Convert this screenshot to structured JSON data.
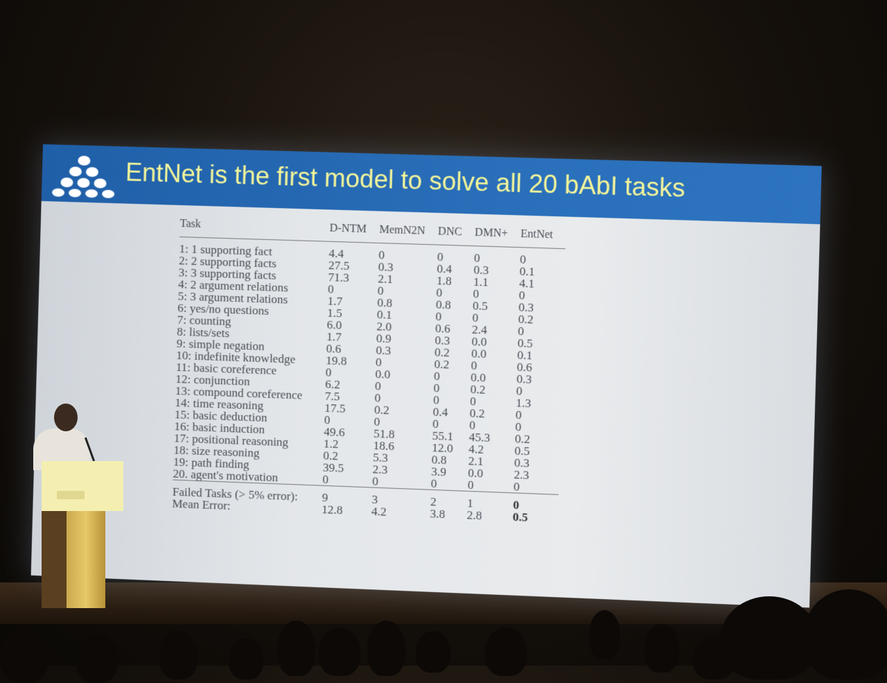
{
  "slide": {
    "title": "EntNet is the first model to solve all 20 bAbI tasks",
    "colors": {
      "header": "#2a6fba",
      "title": "#f3f59a",
      "background": "#e4e7ea"
    },
    "logo": "triangle-of-dots-logo"
  },
  "table": {
    "columns": [
      "Task",
      "D-NTM",
      "MemN2N",
      "DNC",
      "DMN+",
      "EntNet"
    ],
    "rows": [
      {
        "task": "1: 1 supporting fact",
        "values": [
          "4.4",
          "0",
          "0",
          "0",
          "0"
        ]
      },
      {
        "task": "2: 2 supporting facts",
        "values": [
          "27.5",
          "0.3",
          "0.4",
          "0.3",
          "0.1"
        ]
      },
      {
        "task": "3: 3 supporting facts",
        "values": [
          "71.3",
          "2.1",
          "1.8",
          "1.1",
          "4.1"
        ]
      },
      {
        "task": "4: 2 argument relations",
        "values": [
          "0",
          "0",
          "0",
          "0",
          "0"
        ]
      },
      {
        "task": "5: 3 argument relations",
        "values": [
          "1.7",
          "0.8",
          "0.8",
          "0.5",
          "0.3"
        ]
      },
      {
        "task": "6: yes/no questions",
        "values": [
          "1.5",
          "0.1",
          "0",
          "0",
          "0.2"
        ]
      },
      {
        "task": "7: counting",
        "values": [
          "6.0",
          "2.0",
          "0.6",
          "2.4",
          "0"
        ]
      },
      {
        "task": "8: lists/sets",
        "values": [
          "1.7",
          "0.9",
          "0.3",
          "0.0",
          "0.5"
        ]
      },
      {
        "task": "9: simple negation",
        "values": [
          "0.6",
          "0.3",
          "0.2",
          "0.0",
          "0.1"
        ]
      },
      {
        "task": "10: indefinite knowledge",
        "values": [
          "19.8",
          "0",
          "0.2",
          "0",
          "0.6"
        ]
      },
      {
        "task": "11: basic coreference",
        "values": [
          "0",
          "0.0",
          "0",
          "0.0",
          "0.3"
        ]
      },
      {
        "task": "12: conjunction",
        "values": [
          "6.2",
          "0",
          "0",
          "0.2",
          "0"
        ]
      },
      {
        "task": "13: compound coreference",
        "values": [
          "7.5",
          "0",
          "0",
          "0",
          "1.3"
        ]
      },
      {
        "task": "14: time reasoning",
        "values": [
          "17.5",
          "0.2",
          "0.4",
          "0.2",
          "0"
        ]
      },
      {
        "task": "15: basic deduction",
        "values": [
          "0",
          "0",
          "0",
          "0",
          "0"
        ]
      },
      {
        "task": "16: basic induction",
        "values": [
          "49.6",
          "51.8",
          "55.1",
          "45.3",
          "0.2"
        ]
      },
      {
        "task": "17: positional reasoning",
        "values": [
          "1.2",
          "18.6",
          "12.0",
          "4.2",
          "0.5"
        ]
      },
      {
        "task": "18: size reasoning",
        "values": [
          "0.2",
          "5.3",
          "0.8",
          "2.1",
          "0.3"
        ]
      },
      {
        "task": "19: path finding",
        "values": [
          "39.5",
          "2.3",
          "3.9",
          "0.0",
          "2.3"
        ]
      },
      {
        "task": "20. agent's motivation",
        "values": [
          "0",
          "0",
          "0",
          "0",
          "0"
        ]
      }
    ],
    "summary": [
      {
        "task": "Failed Tasks (> 5% error):",
        "values": [
          "9",
          "3",
          "2",
          "1",
          "0"
        ]
      },
      {
        "task": "Mean Error:",
        "values": [
          "12.8",
          "4.2",
          "3.8",
          "2.8",
          "0.5"
        ]
      }
    ]
  }
}
